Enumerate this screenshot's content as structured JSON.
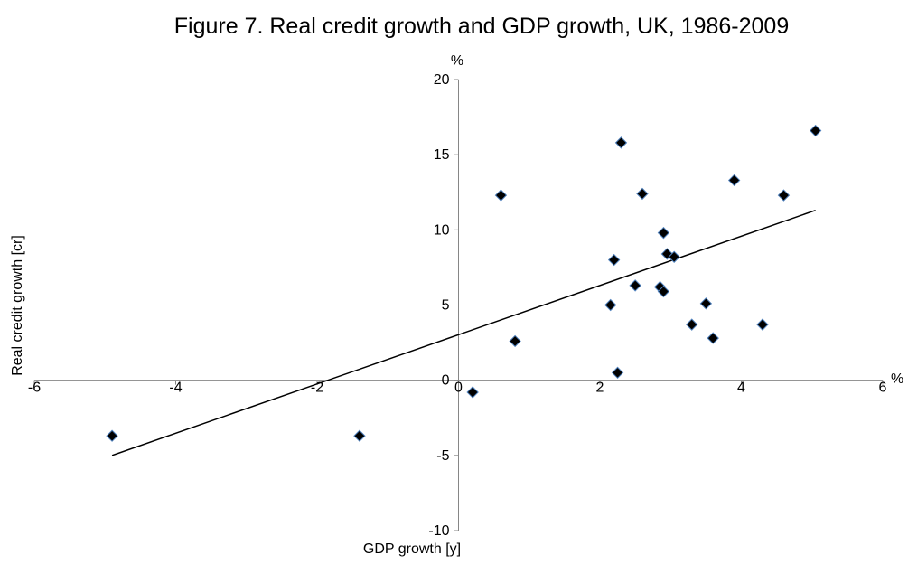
{
  "chart_data": {
    "type": "scatter",
    "title": "Figure 7. Real credit growth and GDP growth, UK, 1986-2009",
    "xlabel": "GDP growth [y]",
    "ylabel": "Real credit growth [cr]",
    "x_unit": "%",
    "y_unit": "%",
    "xlim": [
      -6,
      6
    ],
    "ylim": [
      -10,
      20
    ],
    "xticks": [
      -6,
      -4,
      -2,
      0,
      2,
      4,
      6
    ],
    "yticks": [
      -10,
      -5,
      0,
      5,
      10,
      15,
      20
    ],
    "grid": false,
    "legend": "none",
    "marker_color": "#000000",
    "series": [
      {
        "x": [
          -4.9,
          -1.4,
          0.2,
          0.6,
          0.8,
          2.15,
          2.2,
          2.25,
          2.3,
          2.5,
          2.6,
          2.85,
          2.9,
          2.9,
          2.95,
          3.05,
          3.3,
          3.5,
          3.6,
          3.9,
          4.3,
          4.6,
          5.05
        ],
        "y": [
          -3.7,
          -3.7,
          -0.8,
          12.3,
          2.6,
          5.0,
          8.0,
          0.5,
          15.8,
          6.3,
          12.4,
          6.2,
          9.8,
          5.9,
          8.4,
          8.2,
          3.7,
          5.1,
          2.8,
          13.3,
          3.7,
          12.3,
          16.6
        ]
      }
    ],
    "trendline": {
      "x": [
        -4.9,
        5.05
      ],
      "y": [
        -5.0,
        11.3
      ]
    }
  }
}
